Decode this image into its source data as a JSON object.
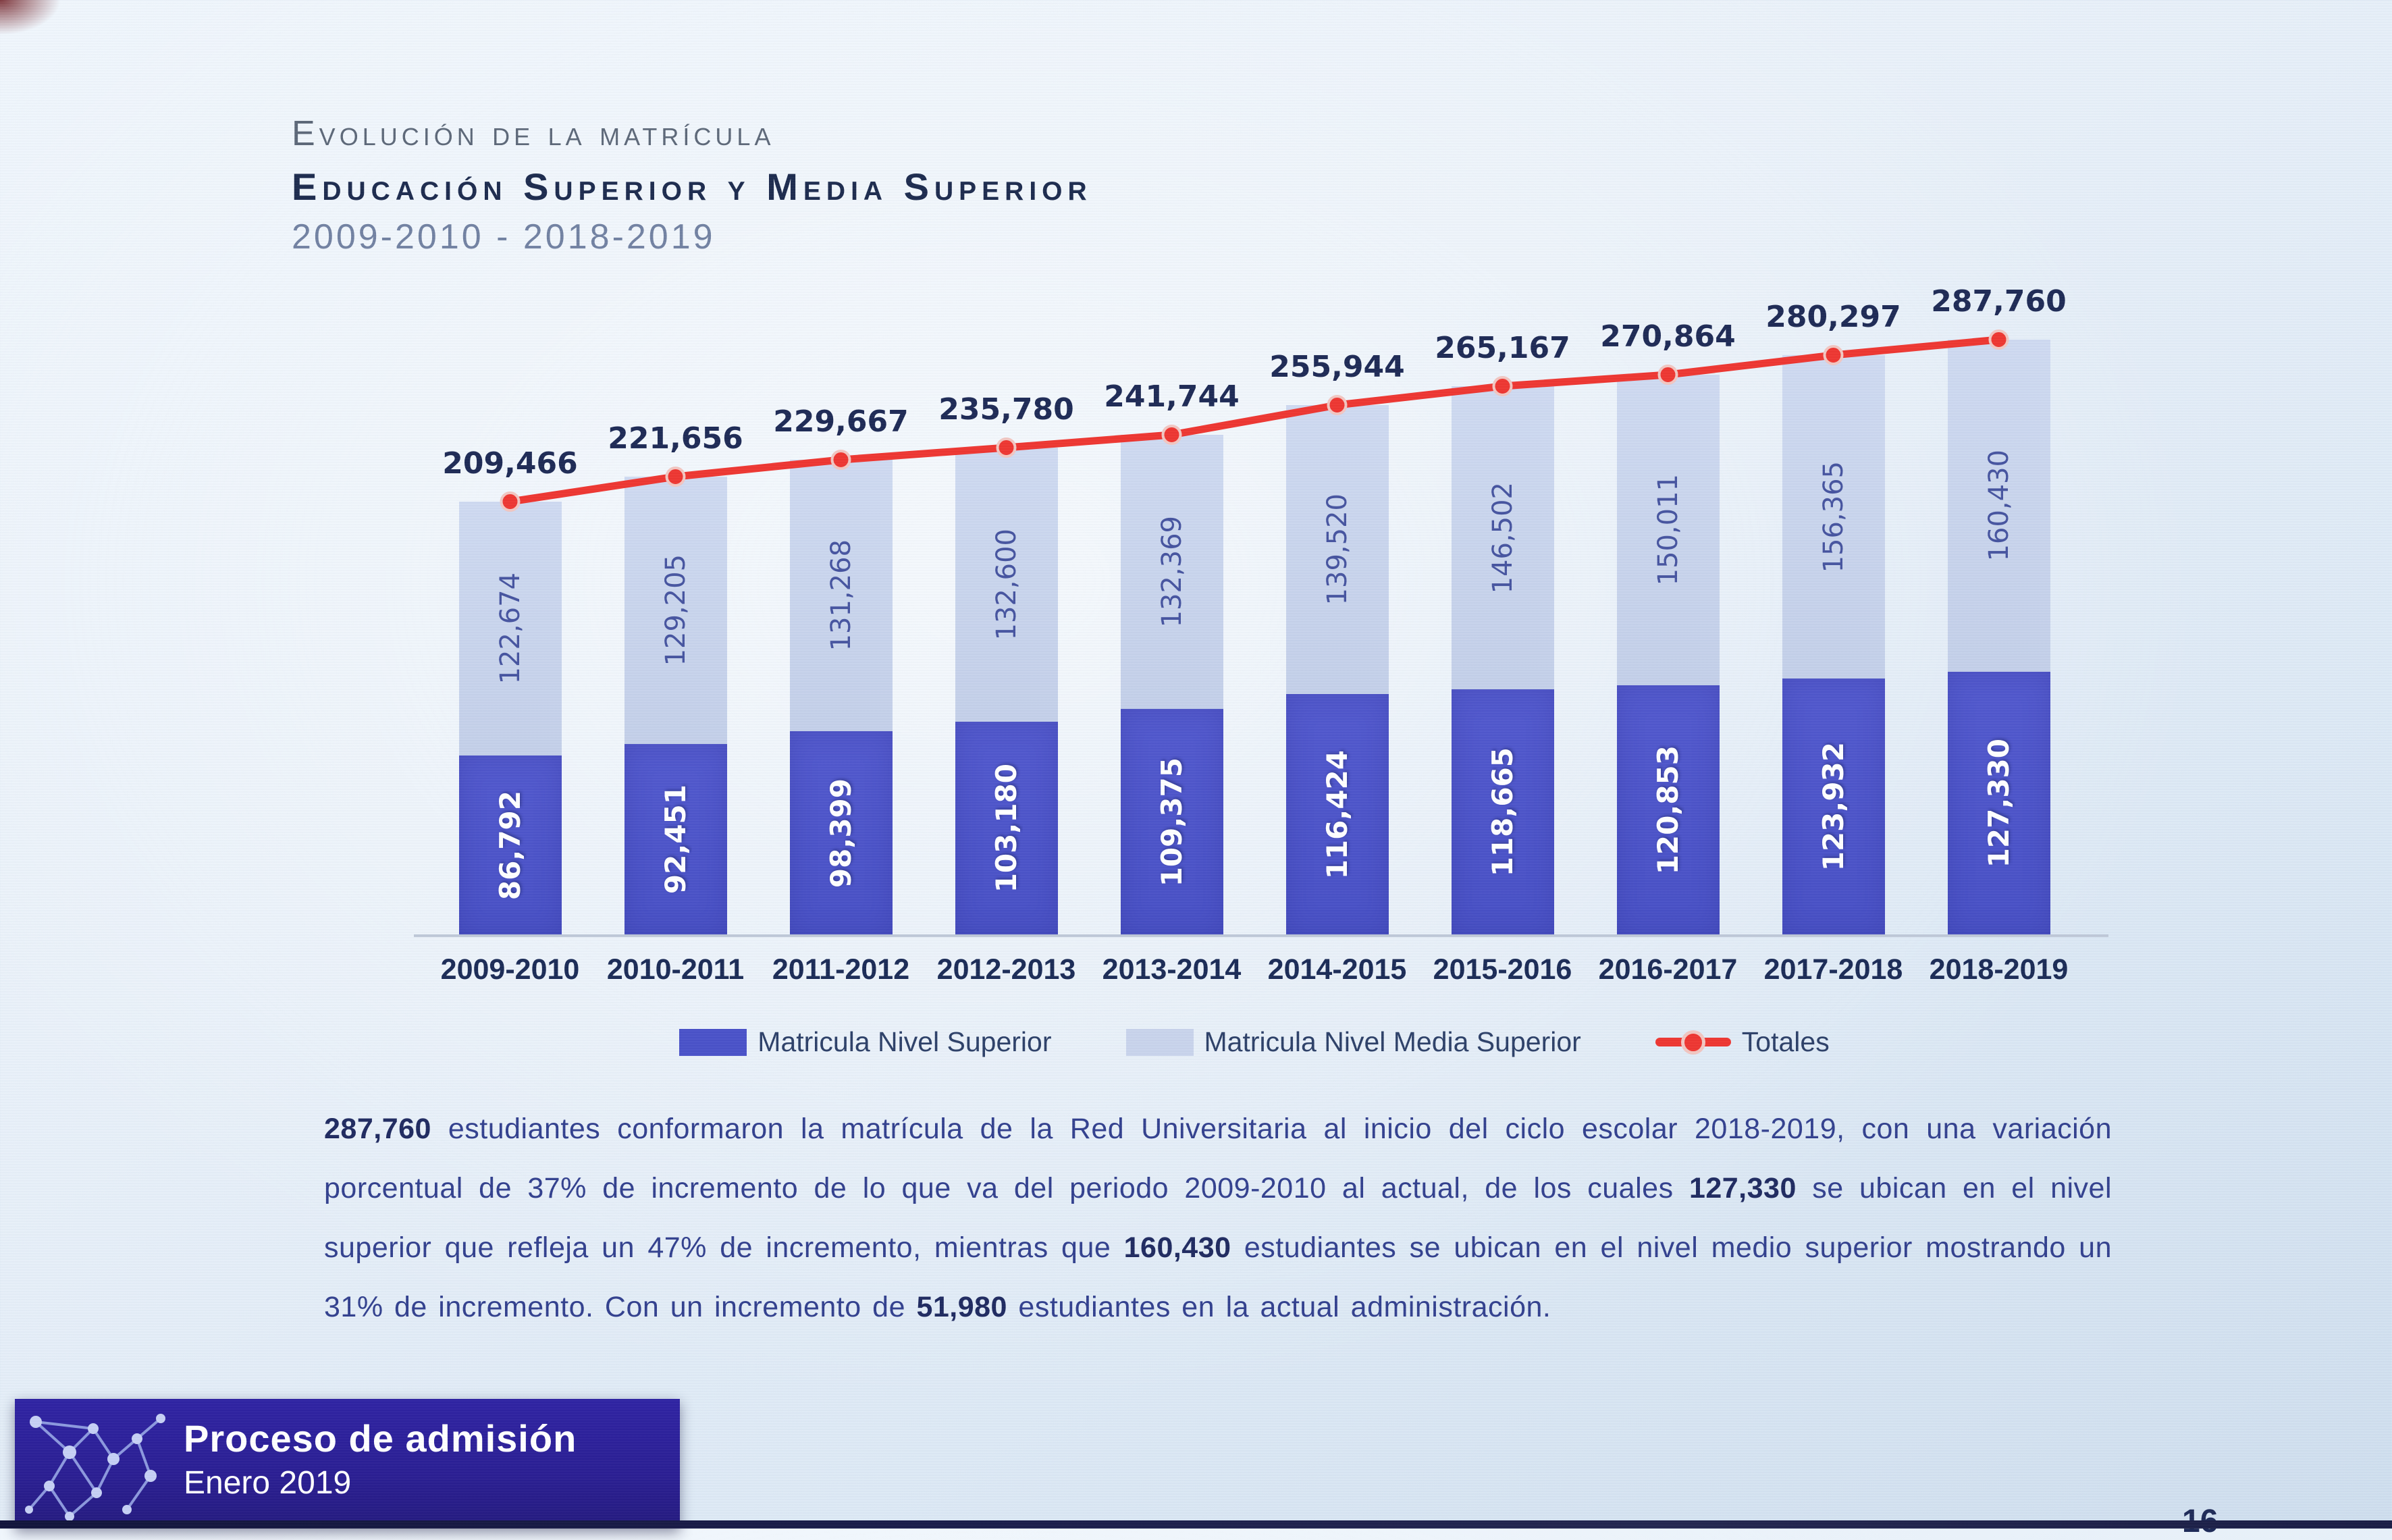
{
  "title": {
    "line1": "Evolución de la matrícula",
    "line2": "Educación Superior y Media Superior",
    "line3": "2009-2010  -  2018-2019"
  },
  "chart_data": {
    "type": "bar",
    "stacked": true,
    "grid": false,
    "legend_position": "bottom",
    "ylim": [
      0,
      287760
    ],
    "categories": [
      "2009-2010",
      "2010-2011",
      "2011-2012",
      "2012-2013",
      "2013-2014",
      "2014-2015",
      "2015-2016",
      "2016-2017",
      "2017-2018",
      "2018-2019"
    ],
    "series": [
      {
        "name": "Matricula Nivel Superior",
        "type": "bar",
        "color": "#4a52c8",
        "values": [
          86792,
          92451,
          98399,
          103180,
          109375,
          116424,
          118665,
          120853,
          123932,
          127330
        ]
      },
      {
        "name": "Matricula Nivel Media Superior",
        "type": "bar",
        "color": "#c9d4ec",
        "values": [
          122674,
          129205,
          131268,
          132600,
          132369,
          139520,
          146502,
          150011,
          156365,
          160430
        ]
      },
      {
        "name": "Totales",
        "type": "line",
        "color": "#ee3631",
        "marker": "circle",
        "values": [
          209466,
          221656,
          229667,
          235780,
          241744,
          255944,
          265167,
          270864,
          280297,
          287760
        ]
      }
    ]
  },
  "paragraph": {
    "segments": [
      {
        "text": "287,760",
        "bold": true
      },
      {
        "text": " estudiantes conformaron la matrícula de la Red Universitaria al inicio del ciclo escolar 2018-2019, con una variación porcentual de 37% de incremento de lo que va del periodo 2009-2010 al actual, de los cuales ",
        "bold": false
      },
      {
        "text": "127,330",
        "bold": true
      },
      {
        "text": " se ubican en el nivel superior que refleja un 47% de incremento, mientras que ",
        "bold": false
      },
      {
        "text": "160,430",
        "bold": true
      },
      {
        "text": " estudiantes se ubican en el nivel medio superior mostrando un 31% de incremento. Con un incremento de ",
        "bold": false
      },
      {
        "text": "51,980",
        "bold": true
      },
      {
        "text": " estudiantes en la actual administración.",
        "bold": false
      }
    ]
  },
  "footer": {
    "line1": "Proceso de admisión",
    "line2": "Enero 2019"
  },
  "page_number": "16"
}
